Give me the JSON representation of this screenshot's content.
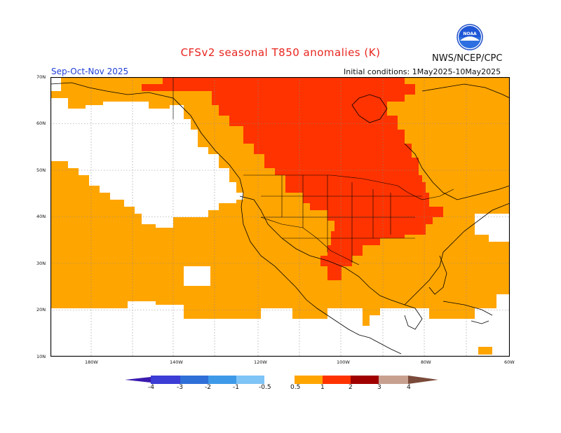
{
  "header": {
    "title": "CFSv2 seasonal T850 anomalies (K)",
    "agency": "NWS/NCEP/CPC",
    "logo_text": "NOAA",
    "season": "Sep-Oct-Nov 2025",
    "initial_conditions": "Initial conditions: 1May2025-10May2025"
  },
  "axes": {
    "lat_labels": [
      "70N",
      "60N",
      "50N",
      "40N",
      "30N",
      "20N",
      "10N"
    ],
    "lon_labels": [
      "180W",
      "140W",
      "120W",
      "100W",
      "80W",
      "60W"
    ]
  },
  "legend": {
    "labels": [
      "-4",
      "-3",
      "-2",
      "-1",
      "-0.5",
      "0.5",
      "1",
      "2",
      "3",
      "4"
    ],
    "colors": [
      "#3a1ab0",
      "#3c3cd6",
      "#2f6fd8",
      "#3e9ae8",
      "#7ec4f6",
      "#ffffff",
      "#ffa500",
      "#ff3300",
      "#a00000",
      "#c8a090",
      "#7a4a3a"
    ]
  },
  "colors": {
    "warm_0_5_to_1": "#ffa500",
    "warm_1_to_2": "#ff3300",
    "warm_2_to_3": "#a00000",
    "neutral": "#ffffff",
    "title": "#e8241e",
    "season": "#1f3fd6"
  }
}
